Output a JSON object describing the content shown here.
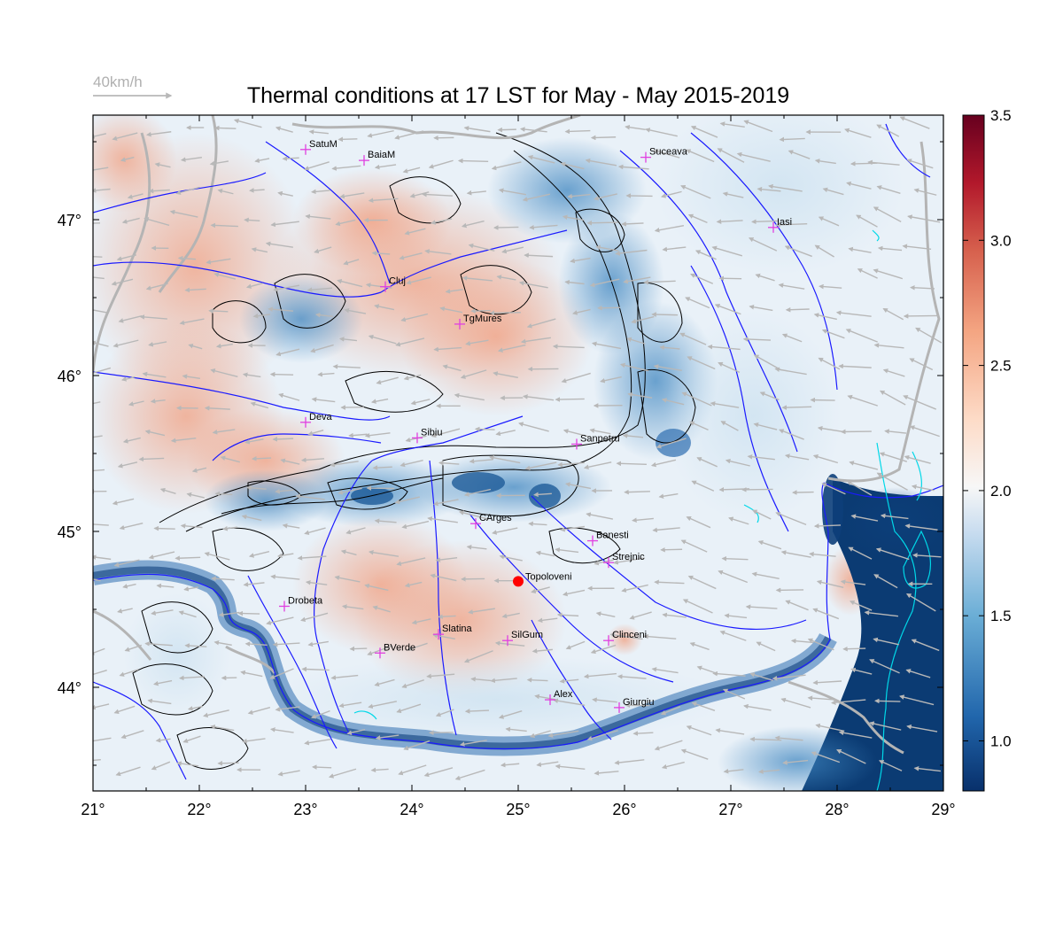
{
  "title": "Thermal conditions at 17 LST for May - May  2015-2019",
  "wind_reference": {
    "label": "40km/h"
  },
  "axes": {
    "lon_ticks": [
      "21°",
      "22°",
      "23°",
      "24°",
      "25°",
      "26°",
      "27°",
      "28°",
      "29°"
    ],
    "lat_ticks": [
      "44°",
      "45°",
      "46°",
      "47°"
    ]
  },
  "colorbar": {
    "tick_labels": [
      "1.0",
      "1.5",
      "2.0",
      "2.5",
      "3.0",
      "3.5"
    ],
    "range": [
      0.8,
      3.5
    ],
    "colors": [
      "#08306b",
      "#2166ac",
      "#6baed6",
      "#c6dbef",
      "#f7f7f7",
      "#fddbc7",
      "#f4a582",
      "#d6604d",
      "#b2182b",
      "#67001f"
    ]
  },
  "colors": {
    "rivers": "#1a1aff",
    "borders": "#b0b0b0",
    "coast": "#00d8e8",
    "contours": "#000000",
    "city_marker": "#e040e0",
    "highlight_site": "#ff0000",
    "wind_arrows": "#b8b8b8"
  },
  "cities": [
    {
      "name": "SatuM",
      "lon": 23.0,
      "lat": 47.45
    },
    {
      "name": "BaiaM",
      "lon": 23.55,
      "lat": 47.38
    },
    {
      "name": "Suceava",
      "lon": 26.2,
      "lat": 47.4
    },
    {
      "name": "Iasi",
      "lon": 27.4,
      "lat": 46.95
    },
    {
      "name": "Cluj",
      "lon": 23.75,
      "lat": 46.57
    },
    {
      "name": "TgMures",
      "lon": 24.45,
      "lat": 46.33
    },
    {
      "name": "Deva",
      "lon": 23.0,
      "lat": 45.7
    },
    {
      "name": "Sibiu",
      "lon": 24.05,
      "lat": 45.6
    },
    {
      "name": "Sanpetru",
      "lon": 25.55,
      "lat": 45.56
    },
    {
      "name": "CArges",
      "lon": 24.6,
      "lat": 45.05
    },
    {
      "name": "Banesti",
      "lon": 25.7,
      "lat": 44.94
    },
    {
      "name": "Strejnic",
      "lon": 25.85,
      "lat": 44.8
    },
    {
      "name": "Drobeta",
      "lon": 22.8,
      "lat": 44.52
    },
    {
      "name": "Slatina",
      "lon": 24.25,
      "lat": 44.34
    },
    {
      "name": "SilGum",
      "lon": 24.9,
      "lat": 44.3
    },
    {
      "name": "Clinceni",
      "lon": 25.85,
      "lat": 44.3
    },
    {
      "name": "BVerde",
      "lon": 23.7,
      "lat": 44.22
    },
    {
      "name": "Alex",
      "lon": 25.3,
      "lat": 43.92
    },
    {
      "name": "Giurgiu",
      "lon": 25.95,
      "lat": 43.87
    }
  ],
  "highlight_site": {
    "name": "Topoloveni",
    "lon": 25.0,
    "lat": 44.68
  }
}
